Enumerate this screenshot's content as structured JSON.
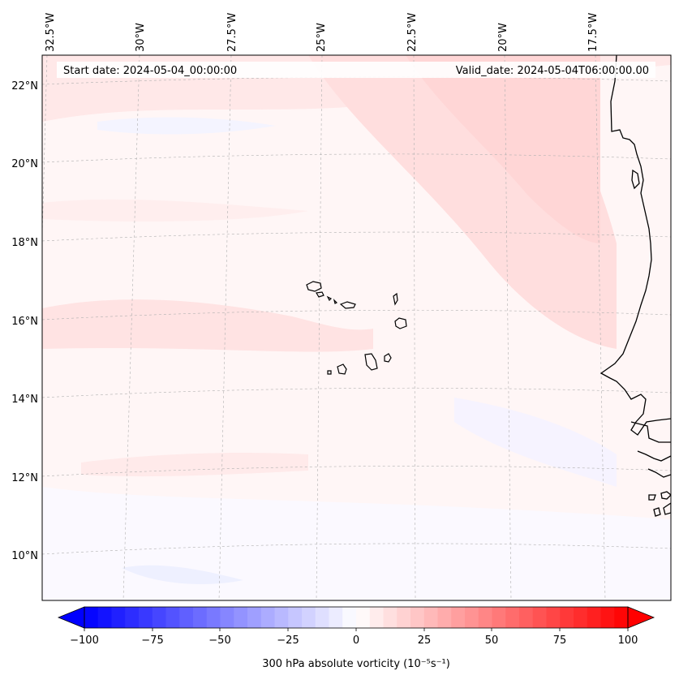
{
  "header": {
    "start_date": "Start date: 2024-05-04_00:00:00",
    "valid_date": "Valid_date: 2024-05-04T06:00:00.00"
  },
  "map": {
    "lon_labels": [
      "32.5°W",
      "30°W",
      "27.5°W",
      "25°W",
      "22.5°W",
      "20°W",
      "17.5°W"
    ],
    "lat_labels": [
      "22°N",
      "20°N",
      "18°N",
      "16°N",
      "14°N",
      "12°N",
      "10°N"
    ],
    "field": "300 hPa absolute vorticity",
    "region": "Cape Verde / West African coast"
  },
  "colorbar": {
    "tick_labels": [
      "−100",
      "−75",
      "−50",
      "−25",
      "0",
      "25",
      "50",
      "75",
      "100"
    ],
    "vmin": -100,
    "vmax": 100,
    "negative_color": "#0000ff",
    "zero_color": "#ffffff",
    "positive_color": "#ff0000",
    "label": "300 hPa absolute vorticity (10⁻⁵s⁻¹)"
  },
  "colors": {
    "coastline": "#000000",
    "gridline": "#b0b0b0"
  }
}
